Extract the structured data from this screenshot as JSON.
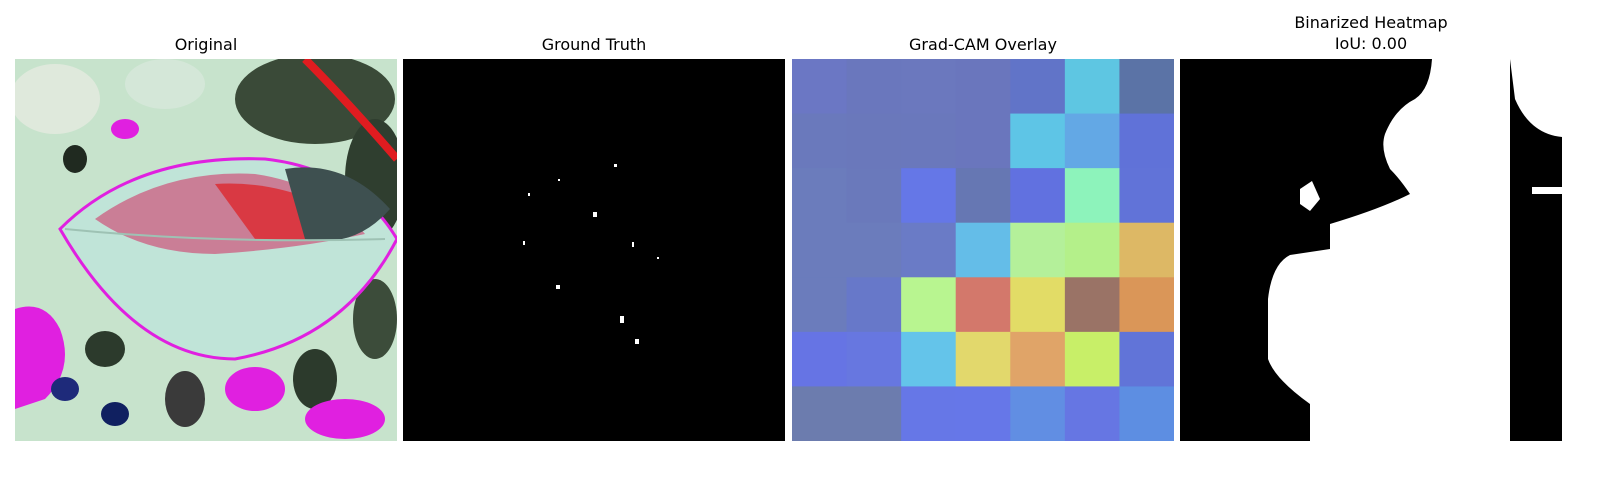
{
  "panels": [
    {
      "title": "Original"
    },
    {
      "title": "Ground Truth"
    },
    {
      "title": "Grad-CAM Overlay"
    },
    {
      "title": "Binarized Heatmap",
      "subtitle": "IoU: 0.00"
    }
  ],
  "gradcam_grid": [
    [
      "#6b77c4",
      "#6a77bd",
      "#6b78be",
      "#6a76bd",
      "#6174c8",
      "#5ec6e2",
      "#5b73a6"
    ],
    [
      "#6a79bc",
      "#6a78bb",
      "#6a78bc",
      "#6a76bd",
      "#5ec5e6",
      "#63a8e5",
      "#6072d8"
    ],
    [
      "#6b7cbc",
      "#6a79bb",
      "#6577e7",
      "#6677b3",
      "#6171e0",
      "#8df3bb",
      "#6173d8"
    ],
    [
      "#6b7cbc",
      "#6b7cbc",
      "#6a7bc6",
      "#64bde8",
      "#b4f09a",
      "#b4f08a",
      "#ddb865"
    ],
    [
      "#6b7cbc",
      "#6778c9",
      "#b8f590",
      "#d3786b",
      "#e2dc66",
      "#9a7366",
      "#da9658"
    ],
    [
      "#6674e4",
      "#6777e0",
      "#64c4ea",
      "#e2d86c",
      "#e0a468",
      "#c8ef68",
      "#6174d8"
    ],
    [
      "#6c7cae",
      "#6c7cae",
      "#6677e7",
      "#6677e8",
      "#618ee3",
      "#6676e3",
      "#5d8ee2"
    ]
  ],
  "colors": {
    "background": "#ffffff",
    "mask_foreground": "#ffffff",
    "mask_background": "#000000"
  }
}
